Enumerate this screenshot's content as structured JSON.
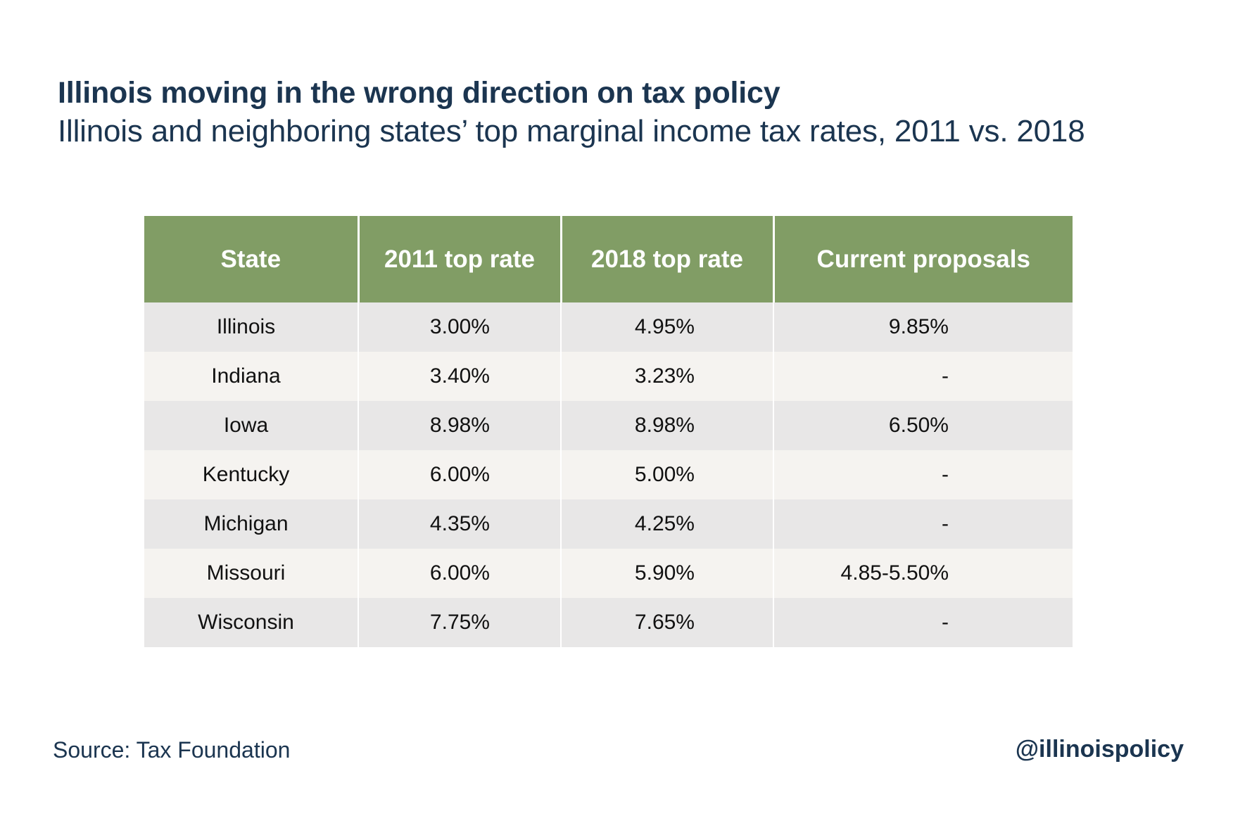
{
  "header": {
    "title": "Illinois moving in the wrong direction on tax policy",
    "subtitle": "Illinois and neighboring states’ top marginal income tax rates, 2011 vs. 2018"
  },
  "chart_data": {
    "type": "table",
    "title": "Illinois moving in the wrong direction on tax policy",
    "subtitle": "Illinois and neighboring states’ top marginal income tax rates, 2011 vs. 2018",
    "columns": [
      "State",
      "2011 top rate",
      "2018 top rate",
      "Current proposals"
    ],
    "rows": [
      [
        "Illinois",
        "3.00%",
        "4.95%",
        "9.85%"
      ],
      [
        "Indiana",
        "3.40%",
        "3.23%",
        "-"
      ],
      [
        "Iowa",
        "8.98%",
        "8.98%",
        "6.50%"
      ],
      [
        "Kentucky",
        "6.00%",
        "5.00%",
        "-"
      ],
      [
        "Michigan",
        "4.35%",
        "4.25%",
        "-"
      ],
      [
        "Missouri",
        "6.00%",
        "5.90%",
        "4.85-5.50%"
      ],
      [
        "Wisconsin",
        "7.75%",
        "7.65%",
        "-"
      ]
    ],
    "colors": {
      "header_bg": "#819d65",
      "header_text": "#ffffff",
      "row_odd": "#e8e7e7",
      "row_even": "#f5f3f0",
      "title_text": "#1b3550"
    }
  },
  "footer": {
    "source": "Source: Tax Foundation",
    "handle": "@illinoispolicy"
  }
}
